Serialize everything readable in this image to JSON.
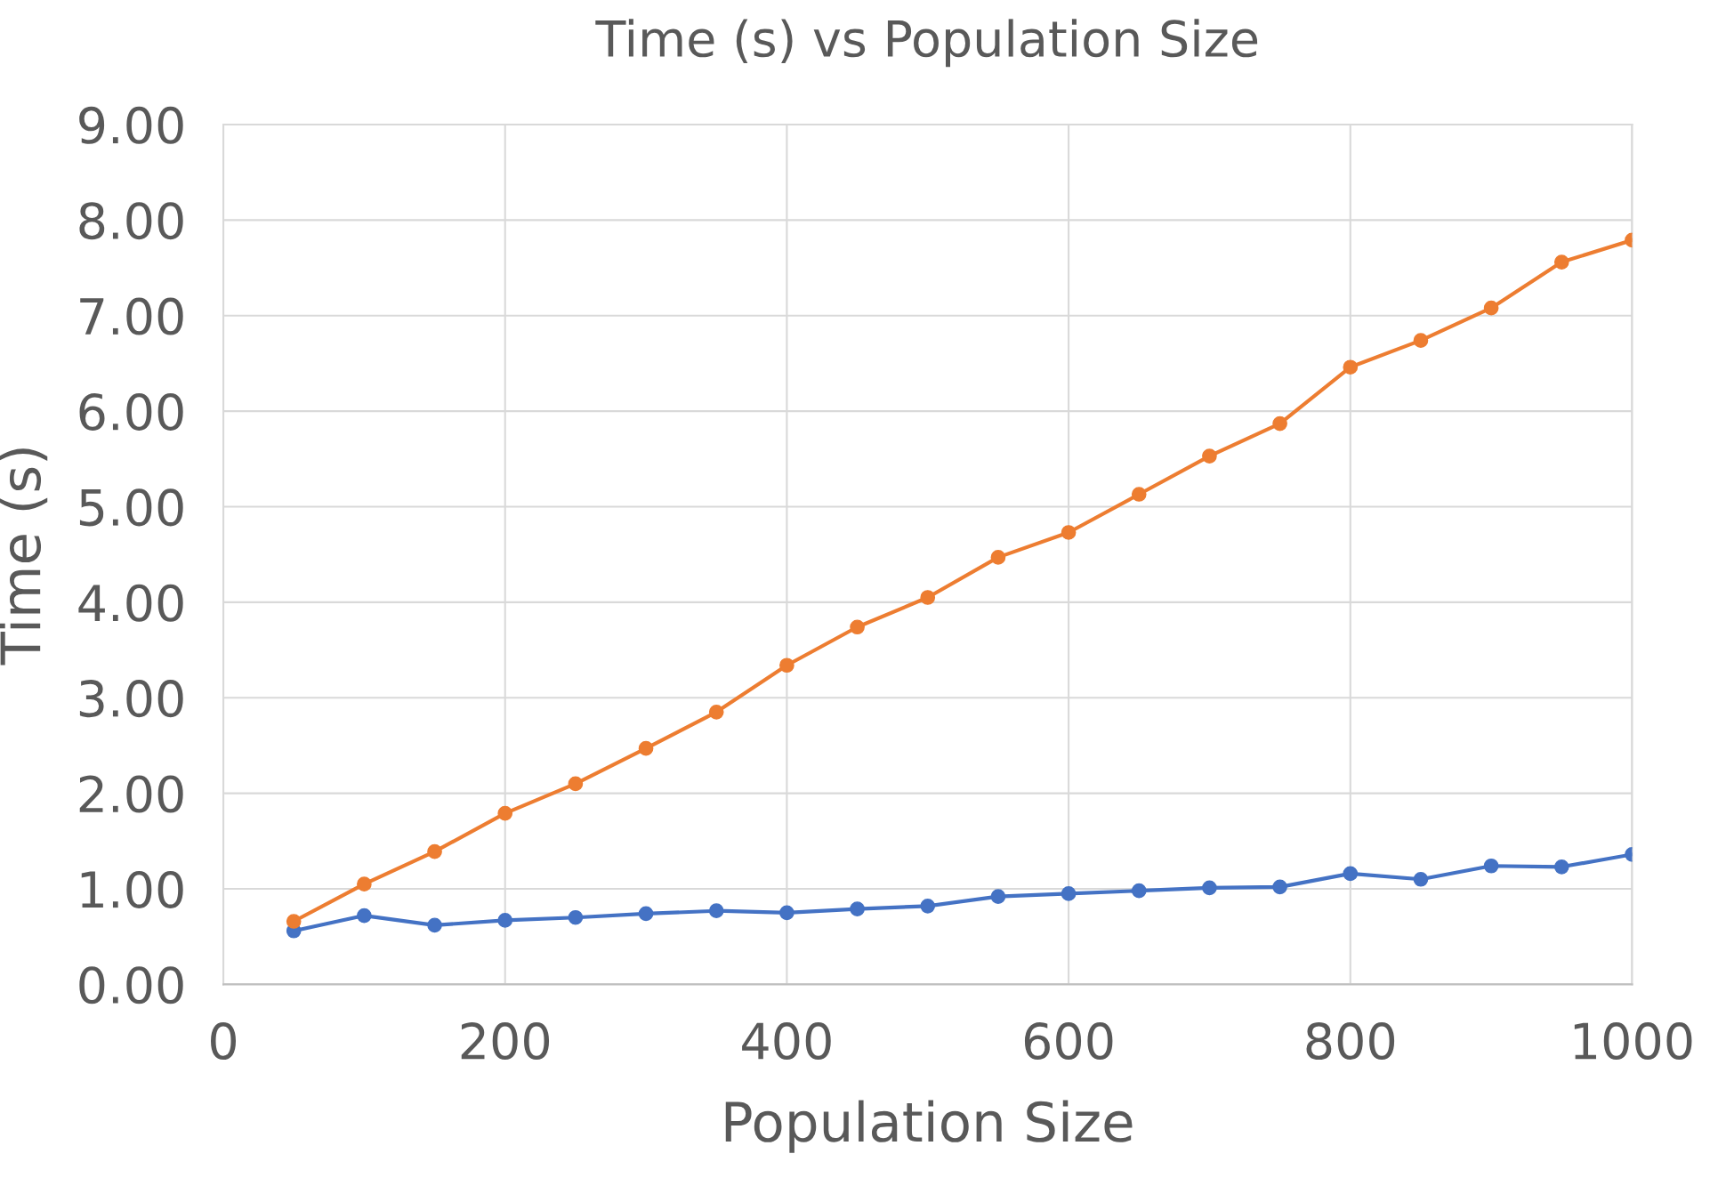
{
  "chart_data": {
    "type": "line",
    "title": "Time (s) vs Population Size",
    "xlabel": "Population Size",
    "ylabel": "Time (s)",
    "x": [
      50,
      100,
      150,
      200,
      250,
      300,
      350,
      400,
      450,
      500,
      550,
      600,
      650,
      700,
      750,
      800,
      850,
      900,
      950,
      1000
    ],
    "series": [
      {
        "color": "#4472c4",
        "values": [
          0.56,
          0.72,
          0.62,
          0.67,
          0.7,
          0.74,
          0.77,
          0.75,
          0.79,
          0.82,
          0.92,
          0.95,
          0.98,
          1.01,
          1.02,
          1.16,
          1.1,
          1.24,
          1.23,
          1.36
        ]
      },
      {
        "color": "#ed7d31",
        "values": [
          0.66,
          1.05,
          1.39,
          1.79,
          2.1,
          2.47,
          2.85,
          3.34,
          3.74,
          4.05,
          4.47,
          4.73,
          5.13,
          5.53,
          5.87,
          6.46,
          6.74,
          7.08,
          7.56,
          7.79
        ]
      }
    ],
    "xlim": [
      0,
      1000
    ],
    "xticks": [
      0,
      200,
      400,
      600,
      800,
      1000
    ],
    "ylim": [
      0,
      9
    ],
    "yticks": [
      {
        "value": 0,
        "label": "0.00"
      },
      {
        "value": 1,
        "label": "1.00"
      },
      {
        "value": 2,
        "label": "2.00"
      },
      {
        "value": 3,
        "label": "3.00"
      },
      {
        "value": 4,
        "label": "4.00"
      },
      {
        "value": 5,
        "label": "5.00"
      },
      {
        "value": 6,
        "label": "6.00"
      },
      {
        "value": 7,
        "label": "7.00"
      },
      {
        "value": 8,
        "label": "8.00"
      },
      {
        "value": 9,
        "label": "9.00"
      }
    ],
    "grid": true,
    "marker": "circle",
    "line_style": "solid"
  }
}
